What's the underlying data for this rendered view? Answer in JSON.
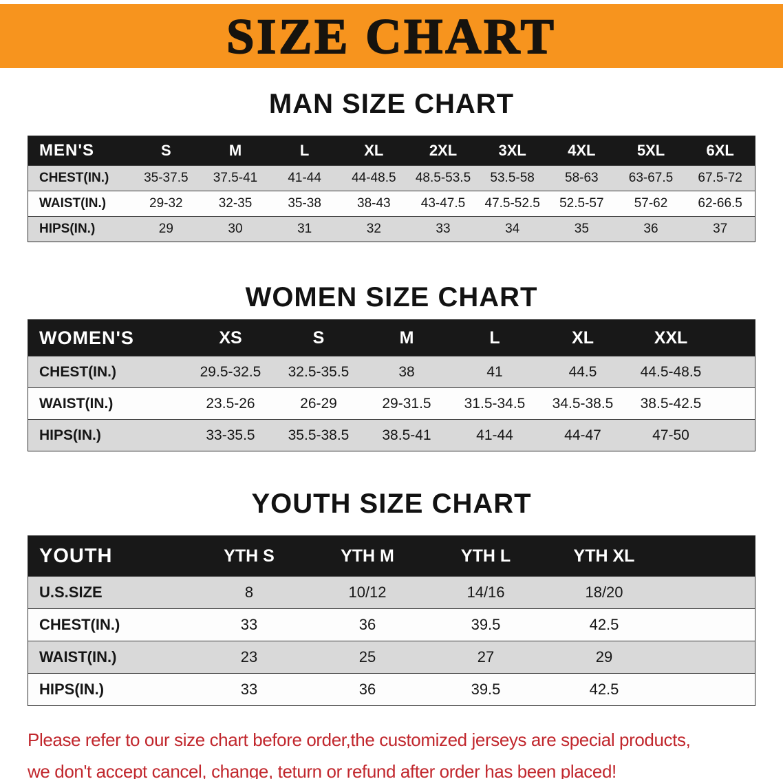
{
  "banner": {
    "title": "SIZE CHART"
  },
  "colors": {
    "banner_bg": "#F7941E",
    "table_header_bg": "#181818",
    "row_stripe": "#d9d9d9",
    "disclaimer_red": "#C1272D"
  },
  "sections": {
    "men": {
      "heading": "MAN SIZE CHART"
    },
    "women": {
      "heading": "WOMEN SIZE CHART"
    },
    "youth": {
      "heading": "YOUTH SIZE CHART"
    }
  },
  "tables": {
    "men": {
      "header": [
        "MEN'S",
        "S",
        "M",
        "L",
        "XL",
        "2XL",
        "3XL",
        "4XL",
        "5XL",
        "6XL"
      ],
      "rows": [
        [
          "CHEST(IN.)",
          "35-37.5",
          "37.5-41",
          "41-44",
          "44-48.5",
          "48.5-53.5",
          "53.5-58",
          "58-63",
          "63-67.5",
          "67.5-72"
        ],
        [
          "WAIST(IN.)",
          "29-32",
          "32-35",
          "35-38",
          "38-43",
          "43-47.5",
          "47.5-52.5",
          "52.5-57",
          "57-62",
          "62-66.5"
        ],
        [
          "HIPS(IN.)",
          "29",
          "30",
          "31",
          "32",
          "33",
          "34",
          "35",
          "36",
          "37"
        ]
      ]
    },
    "women": {
      "header": [
        "WOMEN'S",
        "XS",
        "S",
        "M",
        "L",
        "XL",
        "XXL"
      ],
      "rows": [
        [
          "CHEST(IN.)",
          "29.5-32.5",
          "32.5-35.5",
          "38",
          "41",
          "44.5",
          "44.5-48.5"
        ],
        [
          "WAIST(IN.)",
          "23.5-26",
          "26-29",
          "29-31.5",
          "31.5-34.5",
          "34.5-38.5",
          "38.5-42.5"
        ],
        [
          "HIPS(IN.)",
          "33-35.5",
          "35.5-38.5",
          "38.5-41",
          "41-44",
          "44-47",
          "47-50"
        ]
      ]
    },
    "youth": {
      "header": [
        "YOUTH",
        "YTH S",
        "YTH M",
        "YTH L",
        "YTH XL"
      ],
      "rows": [
        [
          "U.S.SIZE",
          "8",
          "10/12",
          "14/16",
          "18/20"
        ],
        [
          "CHEST(IN.)",
          "33",
          "36",
          "39.5",
          "42.5"
        ],
        [
          "WAIST(IN.)",
          "23",
          "25",
          "27",
          "29"
        ],
        [
          "HIPS(IN.)",
          "33",
          "36",
          "39.5",
          "42.5"
        ]
      ]
    }
  },
  "footer": {
    "line1": "Please refer to our size chart before order,the customized jerseys are special products,",
    "line2": "we don't accept cancel, change, teturn or refund after order has been placed!"
  }
}
